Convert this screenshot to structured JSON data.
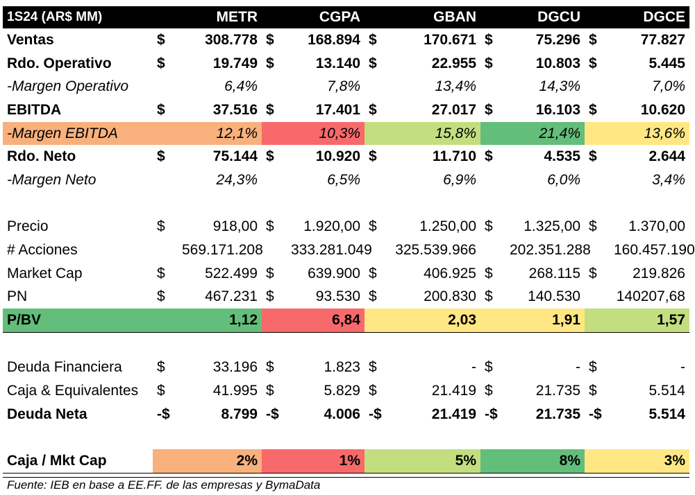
{
  "header": {
    "title": "1S24 (AR$ MM)",
    "companies": [
      "METR",
      "CGPA",
      "GBAN",
      "DGCU",
      "DGCE"
    ]
  },
  "rows": [
    {
      "key": "ventas",
      "label": "Ventas",
      "style": "bold",
      "cur": [
        "$",
        "$",
        "$",
        "$",
        "$"
      ],
      "values": [
        "308.778",
        "168.894",
        "170.671",
        "75.296",
        "77.827"
      ]
    },
    {
      "key": "rdo-operativo",
      "label": "Rdo. Operativo",
      "style": "bold",
      "cur": [
        "$",
        "$",
        "$",
        "$",
        "$"
      ],
      "values": [
        "19.749",
        "13.140",
        "22.955",
        "10.803",
        "5.445"
      ]
    },
    {
      "key": "margen-operativo",
      "label": "-Margen Operativo",
      "style": "italic",
      "cur": [
        "",
        "",
        "",
        "",
        ""
      ],
      "values": [
        "6,4%",
        "7,8%",
        "13,4%",
        "14,3%",
        "7,0%"
      ]
    },
    {
      "key": "ebitda",
      "label": "EBITDA",
      "style": "bold",
      "cur": [
        "$",
        "$",
        "$",
        "$",
        "$"
      ],
      "values": [
        "37.516",
        "17.401",
        "27.017",
        "16.103",
        "10.620"
      ]
    },
    {
      "key": "margen-ebitda",
      "label": "-Margen EBITDA",
      "style": "italic",
      "cur": [
        "",
        "",
        "",
        "",
        ""
      ],
      "values": [
        "12,1%",
        "10,3%",
        "15,8%",
        "21,4%",
        "13,6%"
      ],
      "colors": [
        "#f8b07d",
        "#f8696b",
        "#c3de7f",
        "#63be7b",
        "#ffe884"
      ],
      "label_color": "#f8b07d"
    },
    {
      "key": "rdo-neto",
      "label": "Rdo. Neto",
      "style": "bold",
      "cur": [
        "$",
        "$",
        "$",
        "$",
        "$"
      ],
      "values": [
        "75.144",
        "10.920",
        "11.710",
        "4.535",
        "2.644"
      ]
    },
    {
      "key": "margen-neto",
      "label": "-Margen Neto",
      "style": "italic",
      "cur": [
        "",
        "",
        "",
        "",
        ""
      ],
      "values": [
        "24,3%",
        "6,5%",
        "6,9%",
        "6,0%",
        "3,4%"
      ]
    },
    {
      "key": "spacer-1",
      "spacer": true
    },
    {
      "key": "precio",
      "label": "Precio",
      "style": "normal",
      "cur": [
        "$",
        "$",
        "$",
        "$",
        "$"
      ],
      "values": [
        "918,00",
        "1.920,00",
        "1.250,00",
        "1.325,00",
        "1.370,00"
      ]
    },
    {
      "key": "acciones",
      "label": "# Acciones",
      "style": "normal",
      "cur": [
        "",
        "",
        "",
        "",
        ""
      ],
      "values": [
        "569.171.208",
        "333.281.049",
        "325.539.966",
        "202.351.288",
        "160.457.190"
      ]
    },
    {
      "key": "market-cap",
      "label": "Market Cap",
      "style": "normal",
      "cur": [
        "$",
        "$",
        "$",
        "$",
        "$"
      ],
      "values": [
        "522.499",
        "639.900",
        "406.925",
        "268.115",
        "219.826"
      ]
    },
    {
      "key": "pn",
      "label": "PN",
      "style": "normal",
      "cur": [
        "$",
        "$",
        "$",
        "$",
        ""
      ],
      "values": [
        "467.231",
        "93.530",
        "200.830",
        "140.530",
        "140207,68"
      ]
    },
    {
      "key": "p-bv",
      "label": "P/BV",
      "style": "bold",
      "border": true,
      "cur": [
        "",
        "",
        "",
        "",
        ""
      ],
      "values": [
        "1,12",
        "6,84",
        "2,03",
        "1,91",
        "1,57"
      ],
      "colors": [
        "#63be7b",
        "#f8696b",
        "#ffe884",
        "#ffe884",
        "#c3de7f"
      ],
      "label_color": "#63be7b"
    },
    {
      "key": "spacer-2",
      "spacer": true
    },
    {
      "key": "deuda-financiera",
      "label": "Deuda Financiera",
      "style": "normal",
      "cur": [
        "$",
        "$",
        "$",
        "$",
        "$"
      ],
      "values": [
        "33.196",
        "1.823",
        "-",
        "-",
        "-"
      ]
    },
    {
      "key": "caja",
      "label": "Caja & Equivalentes",
      "style": "normal",
      "cur": [
        "$",
        "$",
        "$",
        "$",
        "$"
      ],
      "values": [
        "41.995",
        "5.829",
        "21.419",
        "21.735",
        "5.514"
      ]
    },
    {
      "key": "deuda-neta",
      "label": "Deuda Neta",
      "style": "bold",
      "cur": [
        "-$",
        "-$",
        "-$",
        "-$",
        "-$"
      ],
      "values": [
        "8.799",
        "4.006",
        "21.419",
        "21.735",
        "5.514"
      ]
    },
    {
      "key": "spacer-3",
      "spacer": true
    },
    {
      "key": "caja-mkt-cap",
      "label": "Caja / Mkt Cap",
      "style": "bold",
      "border": true,
      "cur": [
        "",
        "",
        "",
        "",
        ""
      ],
      "values": [
        "2%",
        "1%",
        "5%",
        "8%",
        "3%"
      ],
      "colors": [
        "#f8b07d",
        "#f8696b",
        "#c3de7f",
        "#63be7b",
        "#ffe884"
      ],
      "label_color": ""
    }
  ],
  "footnote": "Fuente: IEB en base a EE.FF. de las empresas y BymaData"
}
